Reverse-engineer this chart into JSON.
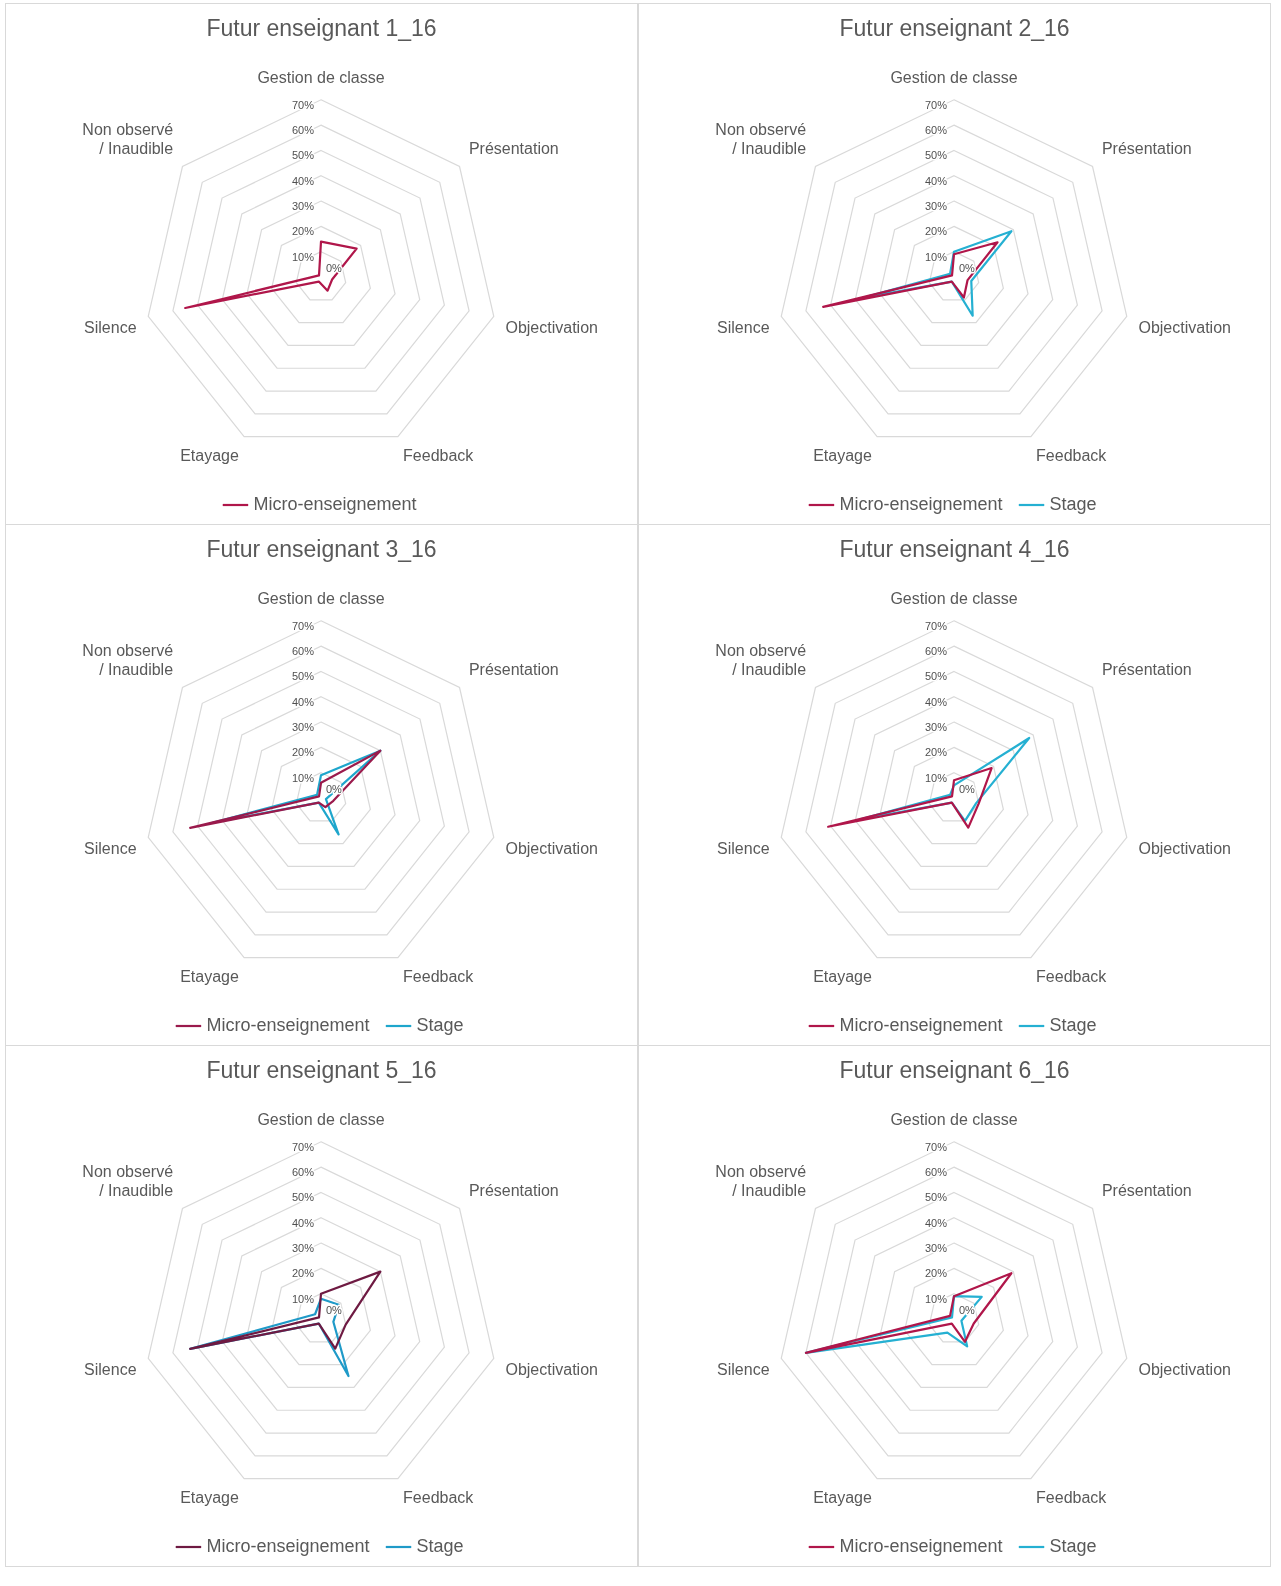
{
  "chart_data": [
    {
      "type": "radar",
      "title": "Futur enseignant 1_16",
      "categories": [
        "Gestion de classe",
        "Présentation",
        "Objectivation",
        "Feedback",
        "Etayage",
        "Silence",
        "Non observé / Inaudible"
      ],
      "ylim": [
        0,
        70
      ],
      "yticks": [
        {
          "value": 0,
          "label": "0%"
        },
        {
          "value": 10,
          "label": "10%"
        },
        {
          "value": 20,
          "label": "20%"
        },
        {
          "value": 30,
          "label": "30%"
        },
        {
          "value": 40,
          "label": "40%"
        },
        {
          "value": 50,
          "label": "50%"
        },
        {
          "value": 60,
          "label": "60%"
        },
        {
          "value": 70,
          "label": "70%"
        }
      ],
      "grid": true,
      "legend": "bottom",
      "marker": "none",
      "series": [
        {
          "name": "Micro-enseignement",
          "color": "#b0164a",
          "values": [
            14,
            18,
            4.5,
            6,
            2,
            55,
            1
          ]
        }
      ]
    },
    {
      "type": "radar",
      "title": "Futur enseignant 2_16",
      "categories": [
        "Gestion de classe",
        "Présentation",
        "Objectivation",
        "Feedback",
        "Etayage",
        "Silence",
        "Non observé / Inaudible"
      ],
      "ylim": [
        0,
        70
      ],
      "yticks": [
        {
          "value": 0,
          "label": "0%"
        },
        {
          "value": 10,
          "label": "10%"
        },
        {
          "value": 20,
          "label": "20%"
        },
        {
          "value": 30,
          "label": "30%"
        },
        {
          "value": 40,
          "label": "40%"
        },
        {
          "value": 50,
          "label": "50%"
        },
        {
          "value": 60,
          "label": "60%"
        },
        {
          "value": 70,
          "label": "70%"
        }
      ],
      "grid": true,
      "legend": "bottom",
      "marker": "none",
      "series": [
        {
          "name": "Micro-enseignement",
          "color": "#b0164a",
          "values": [
            9,
            22,
            5.5,
            9,
            2,
            53,
            1
          ]
        },
        {
          "name": "Stage",
          "color": "#25b0d2",
          "values": [
            10,
            29,
            7,
            17,
            2,
            37,
            2
          ]
        }
      ]
    },
    {
      "type": "radar",
      "title": "Futur enseignant 3_16",
      "categories": [
        "Gestion de classe",
        "Présentation",
        "Objectivation",
        "Feedback",
        "Etayage",
        "Silence",
        "Non observé / Inaudible"
      ],
      "ylim": [
        0,
        70
      ],
      "yticks": [
        {
          "value": 0,
          "label": "0%"
        },
        {
          "value": 10,
          "label": "10%"
        },
        {
          "value": 20,
          "label": "20%"
        },
        {
          "value": 30,
          "label": "30%"
        },
        {
          "value": 40,
          "label": "40%"
        },
        {
          "value": 50,
          "label": "50%"
        },
        {
          "value": 60,
          "label": "60%"
        },
        {
          "value": 70,
          "label": "70%"
        }
      ],
      "grid": true,
      "legend": "bottom",
      "marker": "none",
      "series": [
        {
          "name": "Micro-enseignement",
          "color": "#9a1a4c",
          "values": [
            6,
            30,
            5,
            4,
            2,
            53,
            1
          ]
        },
        {
          "name": "Stage",
          "color": "#1ea6cc",
          "values": [
            9,
            30,
            2,
            16,
            2,
            44,
            2
          ]
        }
      ]
    },
    {
      "type": "radar",
      "title": "Futur enseignant 4_16",
      "categories": [
        "Gestion de classe",
        "Présentation",
        "Objectivation",
        "Feedback",
        "Etayage",
        "Silence",
        "Non observé / Inaudible"
      ],
      "ylim": [
        0,
        70
      ],
      "yticks": [
        {
          "value": 0,
          "label": "0%"
        },
        {
          "value": 10,
          "label": "10%"
        },
        {
          "value": 20,
          "label": "20%"
        },
        {
          "value": 30,
          "label": "30%"
        },
        {
          "value": 40,
          "label": "40%"
        },
        {
          "value": 50,
          "label": "50%"
        },
        {
          "value": 60,
          "label": "60%"
        },
        {
          "value": 70,
          "label": "70%"
        }
      ],
      "grid": true,
      "legend": "bottom",
      "marker": "none",
      "series": [
        {
          "name": "Micro-enseignement",
          "color": "#b0164a",
          "values": [
            7,
            19,
            10,
            13,
            2,
            51,
            1
          ]
        },
        {
          "name": "Stage",
          "color": "#25b0d2",
          "values": [
            5,
            38,
            9,
            10,
            2,
            38,
            2
          ]
        }
      ]
    },
    {
      "type": "radar",
      "title": "Futur enseignant 5_16",
      "categories": [
        "Gestion de classe",
        "Présentation",
        "Objectivation",
        "Feedback",
        "Etayage",
        "Silence",
        "Non observé / Inaudible"
      ],
      "ylim": [
        0,
        70
      ],
      "yticks": [
        {
          "value": 0,
          "label": "0%"
        },
        {
          "value": 10,
          "label": "10%"
        },
        {
          "value": 20,
          "label": "20%"
        },
        {
          "value": 30,
          "label": "30%"
        },
        {
          "value": 40,
          "label": "40%"
        },
        {
          "value": 50,
          "label": "50%"
        },
        {
          "value": 60,
          "label": "60%"
        },
        {
          "value": 70,
          "label": "70%"
        }
      ],
      "grid": true,
      "legend": "bottom",
      "marker": "none",
      "series": [
        {
          "name": "Micro-enseignement",
          "color": "#6e1a42",
          "values": [
            10,
            30,
            10,
            13,
            2,
            53,
            1
          ]
        },
        {
          "name": "Stage",
          "color": "#1f9ac8",
          "values": [
            8,
            9,
            5,
            25,
            2,
            53,
            3
          ]
        }
      ]
    },
    {
      "type": "radar",
      "title": "Futur enseignant 6_16",
      "categories": [
        "Gestion de classe",
        "Présentation",
        "Objectivation",
        "Feedback",
        "Etayage",
        "Silence",
        "Non observé / Inaudible"
      ],
      "ylim": [
        0,
        70
      ],
      "yticks": [
        {
          "value": 0,
          "label": "0%"
        },
        {
          "value": 10,
          "label": "10%"
        },
        {
          "value": 20,
          "label": "20%"
        },
        {
          "value": 30,
          "label": "30%"
        },
        {
          "value": 40,
          "label": "40%"
        },
        {
          "value": 50,
          "label": "50%"
        },
        {
          "value": 60,
          "label": "60%"
        },
        {
          "value": 70,
          "label": "70%"
        }
      ],
      "grid": true,
      "legend": "bottom",
      "marker": "none",
      "series": [
        {
          "name": "Micro-enseignement",
          "color": "#b0164a",
          "values": [
            9,
            29,
            8,
            10,
            2,
            60,
            2
          ]
        },
        {
          "name": "Stage",
          "color": "#25b0d2",
          "values": [
            9,
            14,
            3,
            12,
            6,
            60,
            1
          ]
        }
      ]
    }
  ]
}
